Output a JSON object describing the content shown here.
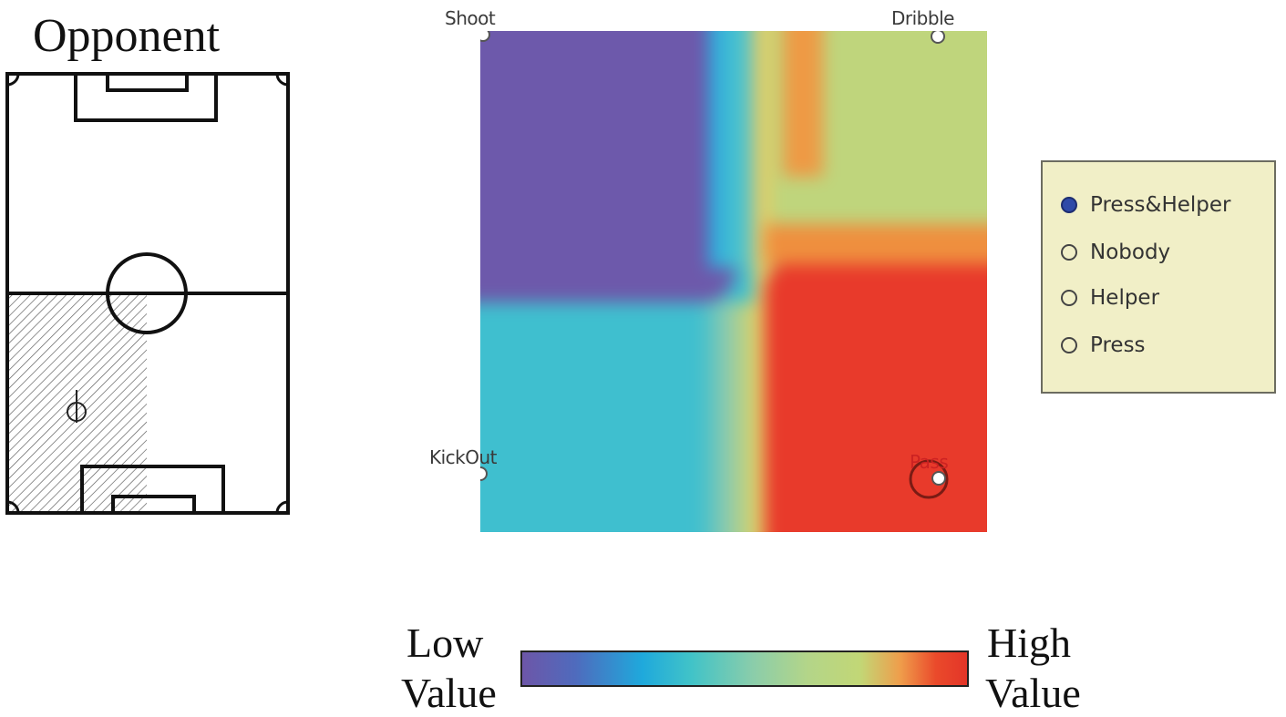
{
  "pitch": {
    "title": "Opponent"
  },
  "value_map": {
    "actions": {
      "top_left": "Shoot",
      "top_right": "Dribble",
      "bottom_left": "KickOut",
      "bottom_right": "Pass"
    },
    "colors": {
      "low": "#6d56a8",
      "cyan": "#3fbfcf",
      "green_yellow": "#bdd47f",
      "orange": "#ee9a45",
      "high": "#e83a2b"
    }
  },
  "legend": {
    "items": [
      {
        "label": "Press&Helper",
        "selected": true
      },
      {
        "label": "Nobody",
        "selected": false
      },
      {
        "label": "Helper",
        "selected": false
      },
      {
        "label": "Press",
        "selected": false
      }
    ]
  },
  "color_scale": {
    "low_line1": "Low",
    "low_line2": "Value",
    "high_line1": "High",
    "high_line2": "Value"
  }
}
